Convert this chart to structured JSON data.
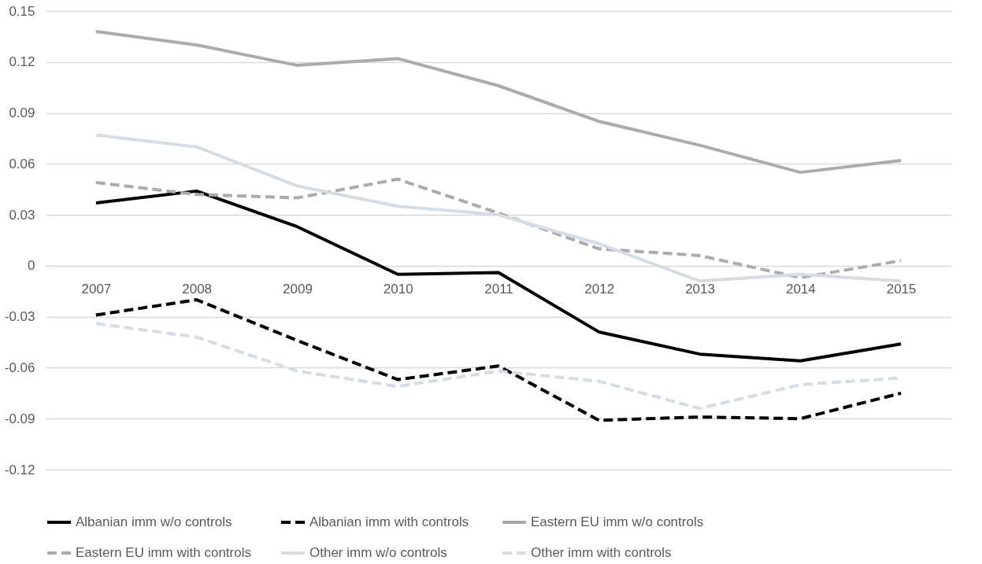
{
  "chart_data": {
    "type": "line",
    "categories": [
      "2007",
      "2008",
      "2009",
      "2010",
      "2011",
      "2012",
      "2013",
      "2014",
      "2015"
    ],
    "ylim": [
      -0.12,
      0.15
    ],
    "yticks": [
      -0.12,
      -0.09,
      -0.06,
      -0.03,
      0,
      0.03,
      0.06,
      0.09,
      0.12,
      0.15
    ],
    "grid": "y",
    "legend": "bottom",
    "marker": "none",
    "series": [
      {
        "name": "Albanian imm  w/o controls",
        "color": "#000000",
        "line_style": "solid",
        "values": [
          0.037,
          0.044,
          0.023,
          -0.005,
          -0.004,
          -0.039,
          -0.052,
          -0.056,
          -0.046
        ]
      },
      {
        "name": "Albanian imm  with controls",
        "color": "#000000",
        "line_style": "dashed",
        "values": [
          -0.029,
          -0.02,
          -0.044,
          -0.067,
          -0.059,
          -0.091,
          -0.089,
          -0.09,
          -0.075
        ]
      },
      {
        "name": "Eastern EU imm  w/o controls",
        "color": "#aeaaaa",
        "line_style": "solid",
        "values": [
          0.138,
          0.13,
          0.118,
          0.122,
          0.106,
          0.085,
          0.071,
          0.055,
          0.062
        ]
      },
      {
        "name": "Eastern EU imm with controls",
        "color": "#aeaaaa",
        "line_style": "dashed",
        "values": [
          0.049,
          0.042,
          0.04,
          0.051,
          0.031,
          0.01,
          0.006,
          -0.007,
          0.003
        ]
      },
      {
        "name": "Other imm  w/o controls",
        "color": "#d6dce5",
        "line_style": "solid",
        "values": [
          0.077,
          0.07,
          0.047,
          0.035,
          0.03,
          0.013,
          -0.009,
          -0.005,
          -0.009
        ]
      },
      {
        "name": "Other imm  with controls",
        "color": "#d6dce5",
        "line_style": "dashed",
        "values": [
          -0.034,
          -0.042,
          -0.062,
          -0.071,
          -0.062,
          -0.068,
          -0.084,
          -0.07,
          -0.066
        ]
      }
    ]
  }
}
